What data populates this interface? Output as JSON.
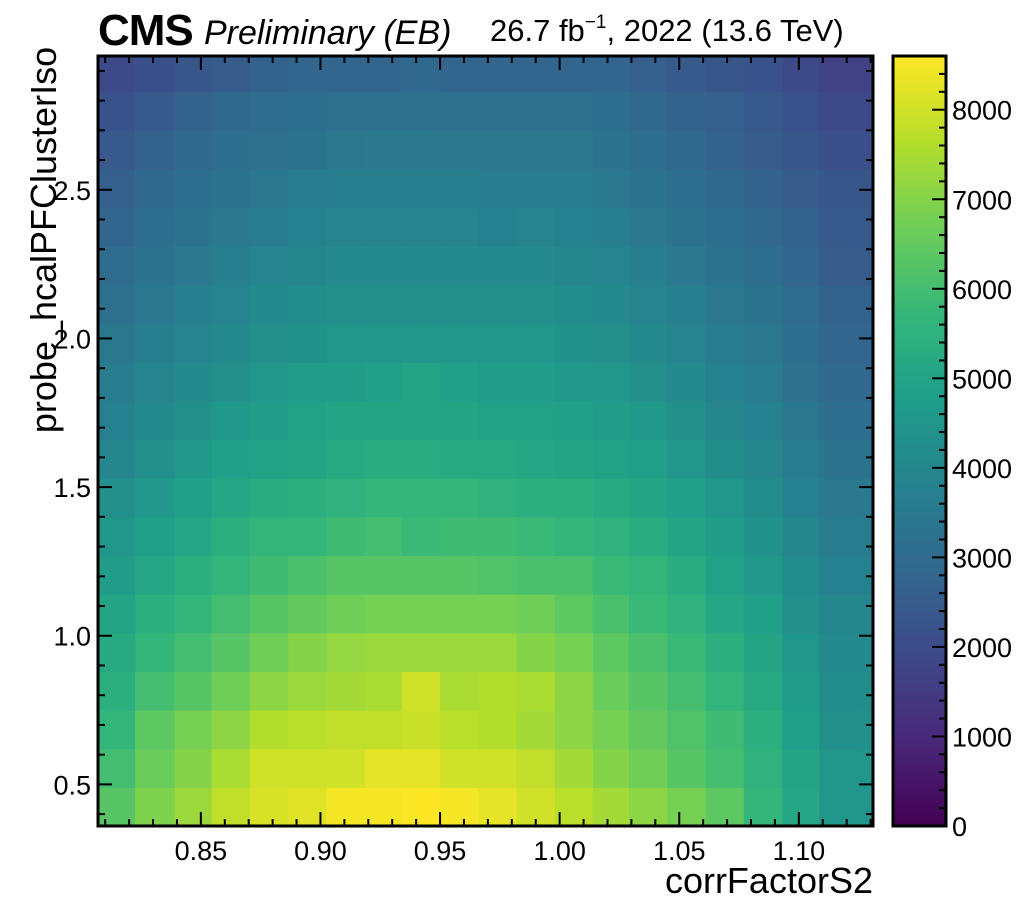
{
  "header": {
    "experiment": "CMS",
    "status": "Preliminary (EB)",
    "lumi_value": "26.7 fb",
    "lumi_exponent": "−1",
    "lumi_rest": ", 2022 (13.6 TeV)"
  },
  "chart_data": {
    "type": "heatmap",
    "title": "",
    "xlabel": "corrFactorS2",
    "ylabel": "probe_hcalPFClusterIso",
    "x_edges": [
      0.807,
      0.8225,
      0.839,
      0.8545,
      0.8705,
      0.8865,
      0.9025,
      0.9185,
      0.934,
      0.95,
      0.966,
      0.982,
      0.998,
      1.014,
      1.029,
      1.045,
      1.061,
      1.077,
      1.093,
      1.1085,
      1.1245,
      1.131
    ],
    "y_edges": [
      0.36,
      0.49,
      0.62,
      0.75,
      0.88,
      1.01,
      1.14,
      1.27,
      1.4,
      1.53,
      1.66,
      1.79,
      1.92,
      2.05,
      2.18,
      2.31,
      2.44,
      2.57,
      2.7,
      2.83,
      2.95
    ],
    "xlim": [
      0.807,
      1.131
    ],
    "ylim": [
      0.36,
      2.95
    ],
    "xticks": [
      0.85,
      0.9,
      0.95,
      1.0,
      1.05,
      1.1
    ],
    "xtick_labels": [
      "0.85",
      "0.90",
      "0.95",
      "1.00",
      "1.05",
      "1.10"
    ],
    "yticks": [
      0.5,
      1.0,
      1.5,
      2.0,
      2.5
    ],
    "ytick_labels": [
      "0.5",
      "1.0",
      "1.5",
      "2.0",
      "2.5"
    ],
    "z_range": [
      0,
      8600
    ],
    "colorbar_ticks": [
      0,
      1000,
      2000,
      3000,
      4000,
      5000,
      6000,
      7000,
      8000
    ],
    "colorbar_labels": [
      "0",
      "1000",
      "2000",
      "3000",
      "4000",
      "5000",
      "6000",
      "7000",
      "8000"
    ],
    "colormap": [
      "#440154",
      "#482878",
      "#3e4989",
      "#31688e",
      "#26828e",
      "#1f9e89",
      "#35b779",
      "#6ece58",
      "#b5de2b",
      "#fde725"
    ],
    "values": [
      [
        6300,
        6900,
        7300,
        7800,
        8100,
        8200,
        8500,
        8500,
        8600,
        8500,
        8300,
        8000,
        7700,
        7400,
        7100,
        6800,
        6400,
        5700,
        5100,
        4500,
        4500
      ],
      [
        6000,
        6600,
        7000,
        7500,
        8000,
        8000,
        8000,
        8300,
        8300,
        8000,
        8000,
        7800,
        7400,
        7000,
        6700,
        6300,
        6000,
        5500,
        5000,
        4500,
        4500
      ],
      [
        5700,
        6400,
        6800,
        7100,
        7600,
        7700,
        7800,
        7800,
        7900,
        7700,
        7600,
        7400,
        7100,
        6800,
        6500,
        6200,
        5900,
        5400,
        4800,
        4300,
        4300
      ],
      [
        5400,
        6000,
        6300,
        6700,
        7100,
        7300,
        7400,
        7500,
        8000,
        7500,
        7600,
        7500,
        7100,
        6600,
        6300,
        6000,
        5600,
        5200,
        4700,
        4200,
        4200
      ],
      [
        5200,
        5700,
        6000,
        6300,
        6700,
        7000,
        7200,
        7300,
        7300,
        7300,
        7300,
        7000,
        6800,
        6400,
        6100,
        5800,
        5400,
        5000,
        4500,
        4100,
        4100
      ],
      [
        5000,
        5400,
        5700,
        6000,
        6300,
        6500,
        6700,
        6800,
        6800,
        6800,
        6800,
        6700,
        6400,
        6100,
        5800,
        5500,
        5100,
        4800,
        4300,
        4000,
        4000
      ],
      [
        4700,
        5100,
        5400,
        5600,
        5900,
        6100,
        6300,
        6300,
        6300,
        6300,
        6200,
        6100,
        6100,
        5800,
        5600,
        5300,
        4900,
        4600,
        4200,
        3800,
        3800
      ],
      [
        4500,
        4800,
        5100,
        5400,
        5600,
        5700,
        5900,
        6000,
        5800,
        5900,
        5900,
        5800,
        5700,
        5500,
        5300,
        5000,
        4700,
        4400,
        4000,
        3600,
        3600
      ],
      [
        4300,
        4600,
        4800,
        5100,
        5300,
        5400,
        5500,
        5700,
        5700,
        5700,
        5500,
        5400,
        5400,
        5200,
        5000,
        4800,
        4500,
        4200,
        3800,
        3500,
        3500
      ],
      [
        4000,
        4300,
        4600,
        4800,
        4900,
        5000,
        5200,
        5300,
        5300,
        5200,
        5200,
        5100,
        5000,
        4900,
        4800,
        4500,
        4200,
        4000,
        3600,
        3300,
        3300
      ],
      [
        3800,
        4100,
        4300,
        4600,
        4700,
        4900,
        5000,
        5000,
        5000,
        5000,
        4900,
        4900,
        4800,
        4700,
        4600,
        4300,
        4000,
        3800,
        3400,
        3100,
        3100
      ],
      [
        3600,
        3900,
        4100,
        4300,
        4500,
        4700,
        4700,
        4800,
        5000,
        4800,
        4700,
        4700,
        4600,
        4500,
        4300,
        4100,
        3800,
        3600,
        3200,
        2900,
        2900
      ],
      [
        3400,
        3700,
        3900,
        4100,
        4300,
        4400,
        4500,
        4500,
        4500,
        4500,
        4500,
        4500,
        4400,
        4300,
        4100,
        3900,
        3600,
        3400,
        3100,
        2800,
        2800
      ],
      [
        3200,
        3500,
        3700,
        3900,
        4100,
        4200,
        4300,
        4300,
        4300,
        4300,
        4300,
        4300,
        4200,
        4100,
        3900,
        3700,
        3500,
        3300,
        3000,
        2700,
        2700
      ],
      [
        3000,
        3300,
        3500,
        3700,
        3900,
        4000,
        4100,
        4100,
        4100,
        4100,
        4100,
        4100,
        4000,
        3900,
        3700,
        3500,
        3300,
        3100,
        2800,
        2500,
        2500
      ],
      [
        2800,
        3100,
        3300,
        3500,
        3600,
        3800,
        3900,
        3900,
        3900,
        3900,
        3800,
        3900,
        3800,
        3700,
        3500,
        3300,
        3100,
        2900,
        2700,
        2400,
        2400
      ],
      [
        2600,
        2900,
        3100,
        3300,
        3400,
        3600,
        3700,
        3700,
        3700,
        3700,
        3600,
        3600,
        3600,
        3500,
        3300,
        3100,
        2900,
        2700,
        2500,
        2300,
        2300
      ],
      [
        2400,
        2700,
        2900,
        3100,
        3200,
        3300,
        3400,
        3500,
        3500,
        3400,
        3400,
        3400,
        3400,
        3300,
        3100,
        2900,
        2700,
        2500,
        2300,
        2100,
        2100
      ],
      [
        2200,
        2400,
        2700,
        2900,
        3000,
        3100,
        3200,
        3200,
        3200,
        3200,
        3200,
        3200,
        3200,
        3100,
        2900,
        2700,
        2600,
        2400,
        2200,
        1900,
        1900
      ],
      [
        1900,
        2100,
        2300,
        2500,
        2700,
        2800,
        2800,
        2800,
        2900,
        2800,
        2800,
        2800,
        2800,
        2800,
        2600,
        2400,
        2300,
        2200,
        1900,
        1700,
        1700
      ]
    ]
  }
}
